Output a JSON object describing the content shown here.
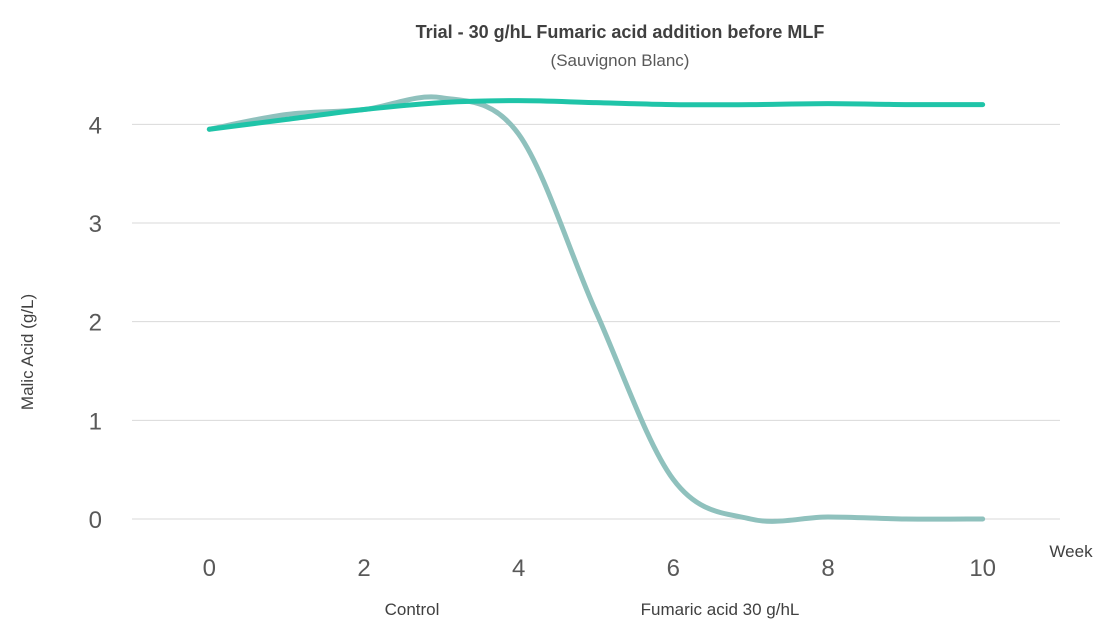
{
  "chart_data": {
    "type": "line",
    "title": "Trial - 30 g/hL Fumaric acid addition before MLF",
    "subtitle": "(Sauvignon Blanc)",
    "xlabel": "Week",
    "ylabel": "Malic Acid (g/L)",
    "xlim": [
      -1,
      11
    ],
    "ylim": [
      0,
      4.5
    ],
    "x_ticks": [
      "0",
      "2",
      "4",
      "6",
      "8",
      "10"
    ],
    "y_ticks": [
      "0",
      "1",
      "2",
      "3",
      "4"
    ],
    "grid": true,
    "legend_position": "bottom",
    "series": [
      {
        "name": "Control",
        "color": "#8fc1bd",
        "x": [
          0,
          1,
          2,
          3,
          4,
          5,
          6,
          7,
          8,
          9,
          10
        ],
        "y": [
          3.95,
          4.1,
          4.15,
          4.27,
          3.9,
          2.1,
          0.4,
          0.0,
          0.02,
          0.0,
          0.0
        ]
      },
      {
        "name": "Fumaric acid 30 g/hL",
        "color": "#1fc4a8",
        "x": [
          0,
          1,
          2,
          3,
          4,
          5,
          6,
          7,
          8,
          9,
          10
        ],
        "y": [
          3.95,
          4.05,
          4.15,
          4.22,
          4.24,
          4.22,
          4.2,
          4.2,
          4.21,
          4.2,
          4.2
        ]
      }
    ]
  }
}
